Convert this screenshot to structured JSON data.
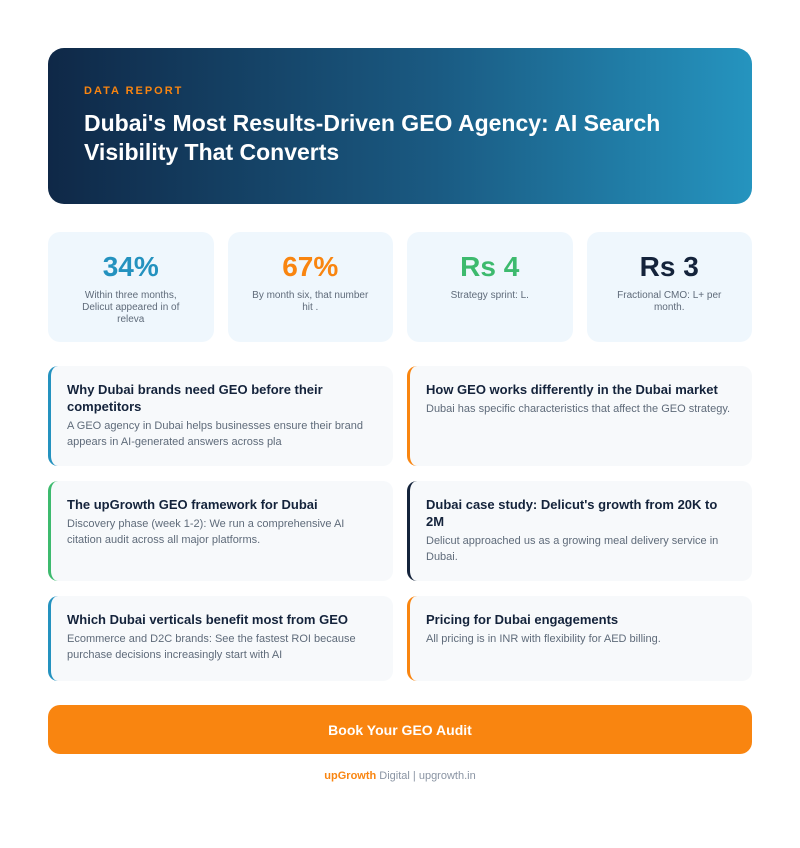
{
  "hero": {
    "eyebrow": "DATA REPORT",
    "title": "Dubai's Most Results-Driven GEO Agency: AI Search Visibility That Converts"
  },
  "stats": [
    {
      "value": "34%",
      "label": "Within three months, Delicut appeared in of releva",
      "color": "#2492bf"
    },
    {
      "value": "67%",
      "label": "By month six, that number hit .",
      "color": "#f98510"
    },
    {
      "value": "Rs 4",
      "label": "Strategy sprint: L.",
      "color": "#3dba6e"
    },
    {
      "value": "Rs 3",
      "label": "Fractional CMO: L+ per month.",
      "color": "#14233b"
    }
  ],
  "cards": [
    {
      "title": "Why Dubai brands need GEO before their competitors",
      "text": "A GEO agency in Dubai helps businesses ensure their brand appears in AI-generated answers across pla",
      "accent": "#2492bf"
    },
    {
      "title": "How GEO works differently in the Dubai market",
      "text": "Dubai has specific characteristics that affect the GEO strategy.",
      "accent": "#f98510"
    },
    {
      "title": "The upGrowth GEO framework for Dubai",
      "text": "Discovery phase (week 1-2): We run a comprehensive AI citation audit across all major platforms.",
      "accent": "#3dba6e"
    },
    {
      "title": "Dubai case study: Delicut's growth from 20K to 2M",
      "text": "Delicut approached us as a growing meal delivery service in Dubai.",
      "accent": "#14233b"
    },
    {
      "title": "Which Dubai verticals benefit most from GEO",
      "text": "Ecommerce and D2C brands: See the fastest ROI because purchase decisions increasingly start with AI",
      "accent": "#2492bf"
    },
    {
      "title": "Pricing for Dubai engagements",
      "text": "All pricing is in INR with flexibility for AED billing.",
      "accent": "#f98510"
    }
  ],
  "cta": {
    "label": "Book Your GEO Audit"
  },
  "footer": {
    "brand": "upGrowth",
    "rest": " Digital | upgrowth.in"
  }
}
